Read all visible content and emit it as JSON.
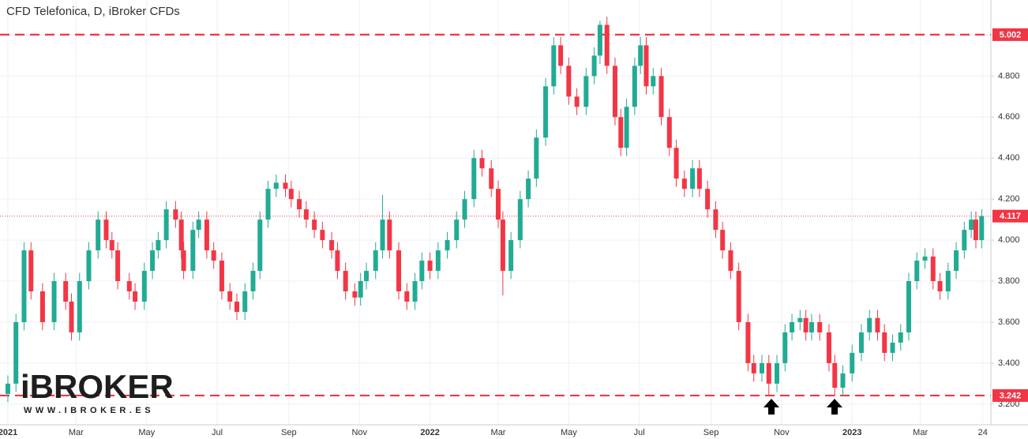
{
  "chart_data": {
    "type": "candlestick",
    "title": "CFD Telefonica, D, iBroker CFDs",
    "up_color": "#22ab94",
    "down_color": "#f23645",
    "level_color": "#f23645",
    "grid": true,
    "xlim": [
      -6.8,
      850
    ],
    "ylim": [
      3.107,
      5.171
    ],
    "xticks": [
      {
        "value": 0,
        "label": "2021"
      },
      {
        "value": 59,
        "label": "Mar"
      },
      {
        "value": 120,
        "label": "May"
      },
      {
        "value": 181,
        "label": "Jul"
      },
      {
        "value": 243,
        "label": "Sep"
      },
      {
        "value": 304,
        "label": "Nov"
      },
      {
        "value": 365,
        "label": "2022"
      },
      {
        "value": 424,
        "label": "Mar"
      },
      {
        "value": 485,
        "label": "May"
      },
      {
        "value": 546,
        "label": "Jul"
      },
      {
        "value": 608,
        "label": "Sep"
      },
      {
        "value": 669,
        "label": "Nov"
      },
      {
        "value": 730,
        "label": "2023"
      },
      {
        "value": 789,
        "label": "Mar"
      },
      {
        "value": 843,
        "label": "24"
      }
    ],
    "yticks": [
      {
        "value": 3.2,
        "label": "3.200"
      },
      {
        "value": 3.4,
        "label": "3.400"
      },
      {
        "value": 3.6,
        "label": "3.600"
      },
      {
        "value": 3.8,
        "label": "3.800"
      },
      {
        "value": 4.0,
        "label": "4.000"
      },
      {
        "value": 4.2,
        "label": "4.200"
      },
      {
        "value": 4.4,
        "label": "4.400"
      },
      {
        "value": 4.6,
        "label": "4.600"
      },
      {
        "value": 4.8,
        "label": "4.800"
      },
      {
        "value": 5.0,
        "label": "5.000"
      }
    ],
    "levels": [
      5.002,
      3.242
    ],
    "x": [
      0,
      7,
      14,
      20,
      30,
      40,
      50,
      55,
      62,
      70,
      78,
      85,
      90,
      95,
      105,
      110,
      118,
      125,
      130,
      137,
      145,
      150,
      152,
      160,
      165,
      172,
      178,
      185,
      192,
      198,
      205,
      212,
      218,
      225,
      232,
      240,
      245,
      252,
      258,
      265,
      272,
      280,
      285,
      292,
      300,
      305,
      310,
      318,
      324,
      330,
      338,
      345,
      352,
      358,
      365,
      372,
      380,
      388,
      395,
      403,
      410,
      418,
      424,
      428,
      435,
      443,
      450,
      457,
      465,
      472,
      478,
      485,
      492,
      500,
      507,
      512,
      518,
      525,
      530,
      535,
      542,
      547,
      552,
      558,
      565,
      572,
      578,
      585,
      592,
      598,
      605,
      612,
      618,
      625,
      632,
      640,
      645,
      652,
      658,
      665,
      672,
      678,
      685,
      690,
      695,
      702,
      710,
      715,
      722,
      730,
      738,
      745,
      752,
      758,
      765,
      772,
      779,
      786,
      793,
      800,
      806,
      813,
      820,
      827,
      833,
      837,
      842
    ],
    "open": [
      3.25,
      3.3,
      3.6,
      3.95,
      3.75,
      3.6,
      3.8,
      3.7,
      3.55,
      3.8,
      3.95,
      4.1,
      4.0,
      3.95,
      3.8,
      3.75,
      3.7,
      3.85,
      3.95,
      4.0,
      4.15,
      4.1,
      3.95,
      3.85,
      4.05,
      4.1,
      3.95,
      3.9,
      3.75,
      3.7,
      3.65,
      3.75,
      3.85,
      4.1,
      4.25,
      4.28,
      4.25,
      4.2,
      4.15,
      4.1,
      4.05,
      4.0,
      3.95,
      3.85,
      3.75,
      3.72,
      3.8,
      3.85,
      3.95,
      4.1,
      3.95,
      3.75,
      3.7,
      3.8,
      3.9,
      3.85,
      3.95,
      4.0,
      4.1,
      4.2,
      4.4,
      4.35,
      4.25,
      4.1,
      3.85,
      4.0,
      4.2,
      4.3,
      4.5,
      4.75,
      4.95,
      4.85,
      4.7,
      4.65,
      4.8,
      4.9,
      5.05,
      4.85,
      4.6,
      4.45,
      4.65,
      4.85,
      4.95,
      4.75,
      4.8,
      4.6,
      4.45,
      4.3,
      4.25,
      4.35,
      4.25,
      4.15,
      4.05,
      3.95,
      3.85,
      3.6,
      3.4,
      3.35,
      3.4,
      3.3,
      3.4,
      3.55,
      3.6,
      3.62,
      3.55,
      3.6,
      3.55,
      3.4,
      3.28,
      3.35,
      3.45,
      3.55,
      3.62,
      3.55,
      3.45,
      3.5,
      3.55,
      3.8,
      3.9,
      3.92,
      3.8,
      3.75,
      3.85,
      3.95,
      4.05,
      4.1,
      4.0
    ],
    "high": [
      3.34,
      3.64,
      3.99,
      3.99,
      3.79,
      3.84,
      3.84,
      3.74,
      3.84,
      3.99,
      4.14,
      4.14,
      4.04,
      3.99,
      3.84,
      3.79,
      3.89,
      3.99,
      4.04,
      4.19,
      4.19,
      4.14,
      3.99,
      4.09,
      4.14,
      4.14,
      3.99,
      3.94,
      3.79,
      3.74,
      3.79,
      3.89,
      4.14,
      4.29,
      4.32,
      4.32,
      4.29,
      4.24,
      4.19,
      4.14,
      4.09,
      4.04,
      3.99,
      3.89,
      3.79,
      3.84,
      3.89,
      3.99,
      4.22,
      4.14,
      3.99,
      3.79,
      3.84,
      3.94,
      3.94,
      3.99,
      4.04,
      4.14,
      4.24,
      4.44,
      4.44,
      4.39,
      4.29,
      4.14,
      4.04,
      4.24,
      4.34,
      4.54,
      4.79,
      4.99,
      4.99,
      4.89,
      4.74,
      4.84,
      4.94,
      5.07,
      5.09,
      4.89,
      4.64,
      4.69,
      4.89,
      4.99,
      4.99,
      4.84,
      4.84,
      4.64,
      4.49,
      4.34,
      4.39,
      4.39,
      4.29,
      4.19,
      4.09,
      3.99,
      3.89,
      3.64,
      3.44,
      3.44,
      3.44,
      3.44,
      3.59,
      3.64,
      3.66,
      3.66,
      3.64,
      3.64,
      3.59,
      3.44,
      3.39,
      3.49,
      3.59,
      3.66,
      3.66,
      3.59,
      3.54,
      3.59,
      3.84,
      3.94,
      3.96,
      3.96,
      3.84,
      3.89,
      3.99,
      4.09,
      4.14,
      4.14,
      4.15
    ],
    "low": [
      3.21,
      3.26,
      3.56,
      3.71,
      3.56,
      3.56,
      3.66,
      3.51,
      3.51,
      3.76,
      3.91,
      3.96,
      3.91,
      3.76,
      3.71,
      3.66,
      3.66,
      3.81,
      3.91,
      3.96,
      4.06,
      3.91,
      3.81,
      3.81,
      4.01,
      3.91,
      3.86,
      3.71,
      3.66,
      3.61,
      3.61,
      3.71,
      3.81,
      4.06,
      4.21,
      4.21,
      4.16,
      4.11,
      4.06,
      4.01,
      3.96,
      3.91,
      3.81,
      3.71,
      3.68,
      3.68,
      3.76,
      3.81,
      3.91,
      3.91,
      3.71,
      3.66,
      3.66,
      3.76,
      3.81,
      3.81,
      3.91,
      3.96,
      4.06,
      4.16,
      4.31,
      4.21,
      4.06,
      3.73,
      3.81,
      3.96,
      4.16,
      4.26,
      4.46,
      4.71,
      4.81,
      4.66,
      4.61,
      4.61,
      4.76,
      4.86,
      4.81,
      4.56,
      4.41,
      4.41,
      4.61,
      4.81,
      4.71,
      4.71,
      4.56,
      4.41,
      4.26,
      4.21,
      4.21,
      4.21,
      4.11,
      4.01,
      3.91,
      3.81,
      3.56,
      3.36,
      3.31,
      3.31,
      3.24,
      3.26,
      3.36,
      3.51,
      3.56,
      3.51,
      3.51,
      3.51,
      3.36,
      3.24,
      3.24,
      3.31,
      3.41,
      3.51,
      3.51,
      3.41,
      3.41,
      3.46,
      3.51,
      3.76,
      3.86,
      3.76,
      3.71,
      3.71,
      3.81,
      3.91,
      4.01,
      3.96,
      3.96
    ],
    "close": [
      3.3,
      3.6,
      3.95,
      3.75,
      3.6,
      3.8,
      3.7,
      3.55,
      3.8,
      3.95,
      4.1,
      4.0,
      3.95,
      3.8,
      3.75,
      3.7,
      3.85,
      3.95,
      4.0,
      4.15,
      4.1,
      3.95,
      3.85,
      4.05,
      4.1,
      3.95,
      3.9,
      3.75,
      3.7,
      3.65,
      3.75,
      3.85,
      4.1,
      4.25,
      4.28,
      4.25,
      4.2,
      4.15,
      4.1,
      4.05,
      4.0,
      3.95,
      3.85,
      3.75,
      3.72,
      3.8,
      3.85,
      3.95,
      4.1,
      3.95,
      3.75,
      3.7,
      3.8,
      3.9,
      3.85,
      3.95,
      4.0,
      4.1,
      4.2,
      4.4,
      4.35,
      4.25,
      4.1,
      3.85,
      4.0,
      4.2,
      4.3,
      4.5,
      4.75,
      4.95,
      4.85,
      4.7,
      4.65,
      4.8,
      4.9,
      5.05,
      4.85,
      4.6,
      4.45,
      4.65,
      4.85,
      4.95,
      4.75,
      4.8,
      4.6,
      4.45,
      4.3,
      4.25,
      4.35,
      4.25,
      4.15,
      4.05,
      3.95,
      3.85,
      3.6,
      3.4,
      3.35,
      3.4,
      3.3,
      3.4,
      3.55,
      3.6,
      3.62,
      3.55,
      3.6,
      3.55,
      3.4,
      3.28,
      3.35,
      3.45,
      3.55,
      3.62,
      3.55,
      3.45,
      3.5,
      3.55,
      3.8,
      3.9,
      3.92,
      3.8,
      3.75,
      3.85,
      3.95,
      4.05,
      4.1,
      4.0,
      4.117
    ]
  },
  "watermark": {
    "brand": "iBROKER",
    "url": "WWW.IBROKER.ES"
  }
}
